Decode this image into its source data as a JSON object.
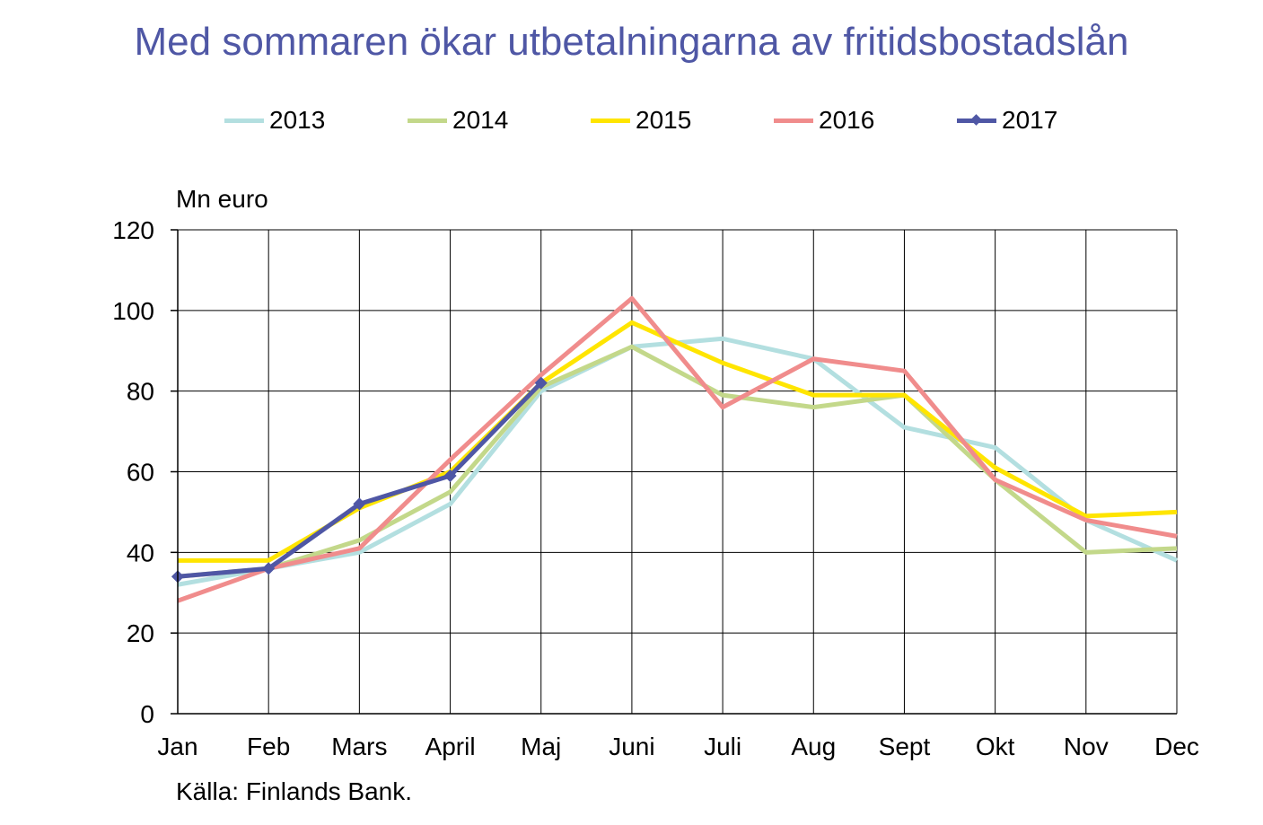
{
  "title": "Med sommaren ökar utbetalningarna av fritidsbostadslån",
  "source": "Källa: Finlands Bank.",
  "chart_data": {
    "type": "line",
    "ylabel": "Mn euro",
    "ylim": [
      0,
      120
    ],
    "yticks": [
      0,
      20,
      40,
      60,
      80,
      100,
      120
    ],
    "grid": true,
    "legend_position": "top",
    "categories": [
      "Jan",
      "Feb",
      "Mars",
      "April",
      "Maj",
      "Juni",
      "Juli",
      "Aug",
      "Sept",
      "Okt",
      "Nov",
      "Dec"
    ],
    "series": [
      {
        "name": "2013",
        "color": "#B3DFE0",
        "marker": false,
        "values": [
          32,
          36,
          40,
          52,
          80,
          91,
          93,
          88,
          71,
          66,
          48,
          38
        ]
      },
      {
        "name": "2014",
        "color": "#C3D88A",
        "marker": false,
        "values": [
          34,
          36,
          43,
          55,
          81,
          91,
          79,
          76,
          79,
          58,
          40,
          41
        ]
      },
      {
        "name": "2015",
        "color": "#FFE500",
        "marker": false,
        "values": [
          38,
          38,
          51,
          60,
          82,
          97,
          87,
          79,
          79,
          61,
          49,
          50
        ]
      },
      {
        "name": "2016",
        "color": "#F08C8C",
        "marker": false,
        "values": [
          28,
          36,
          41,
          63,
          84,
          103,
          76,
          88,
          85,
          58,
          48,
          44
        ]
      },
      {
        "name": "2017",
        "color": "#4F57A5",
        "marker": true,
        "values": [
          34,
          36,
          52,
          59,
          82,
          null,
          null,
          null,
          null,
          null,
          null,
          null
        ]
      }
    ]
  }
}
